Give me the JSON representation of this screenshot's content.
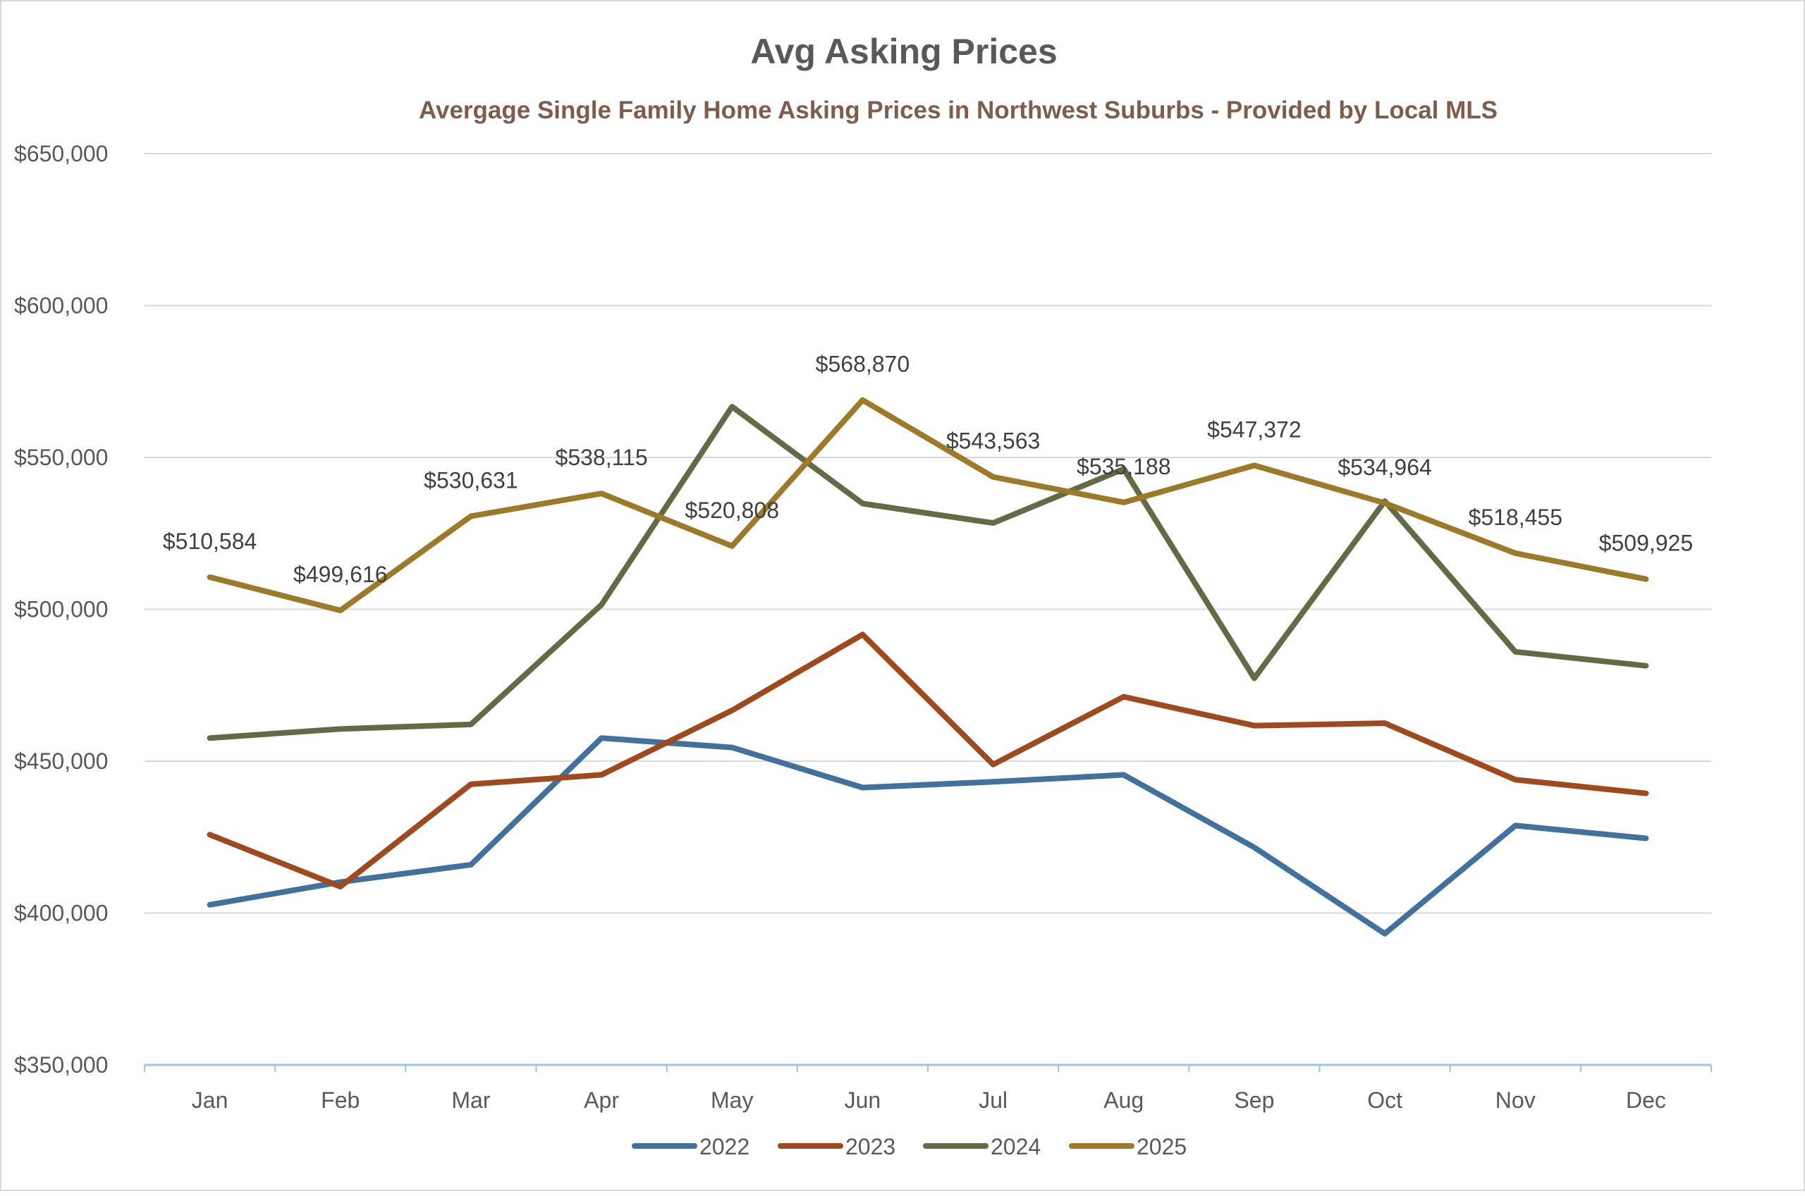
{
  "chart_data": {
    "type": "line",
    "title": "Avg Asking Prices",
    "subtitle": "Avergage Single Family Home Asking Prices in Northwest Suburbs - Provided by Local MLS",
    "xlabel": "",
    "ylabel": "",
    "categories": [
      "Jan",
      "Feb",
      "Mar",
      "Apr",
      "May",
      "Jun",
      "Jul",
      "Aug",
      "Sep",
      "Oct",
      "Nov",
      "Dec"
    ],
    "ylim": [
      350000,
      650000
    ],
    "yticks": [
      350000,
      400000,
      450000,
      500000,
      550000,
      600000,
      650000
    ],
    "ytick_labels": [
      "$350,000",
      "$400,000",
      "$450,000",
      "$500,000",
      "$550,000",
      "$600,000",
      "$650,000"
    ],
    "grid": true,
    "legend_position": "bottom",
    "series": [
      {
        "name": "2022",
        "color": "#41719C",
        "values": [
          402700,
          410200,
          415900,
          457600,
          454500,
          441300,
          443200,
          445500,
          421600,
          393200,
          428800,
          424600
        ]
      },
      {
        "name": "2023",
        "color": "#9E4A1E",
        "values": [
          425800,
          408700,
          442400,
          445500,
          466700,
          491700,
          448900,
          471200,
          461700,
          462500,
          443900,
          439400
        ]
      },
      {
        "name": "2024",
        "color": "#636B46",
        "values": [
          457600,
          460600,
          462100,
          501500,
          566700,
          534800,
          528400,
          546200,
          477300,
          535600,
          486000,
          481400
        ]
      },
      {
        "name": "2025",
        "color": "#9C7A29",
        "values": [
          510584,
          499616,
          530631,
          538115,
          520808,
          568870,
          543563,
          535188,
          547372,
          534964,
          518455,
          509925
        ],
        "data_labels": [
          "$510,584",
          "$499,616",
          "$530,631",
          "$538,115",
          "$520,808",
          "$568,870",
          "$543,563",
          "$535,188",
          "$547,372",
          "$534,964",
          "$518,455",
          "$509,925"
        ]
      }
    ]
  }
}
